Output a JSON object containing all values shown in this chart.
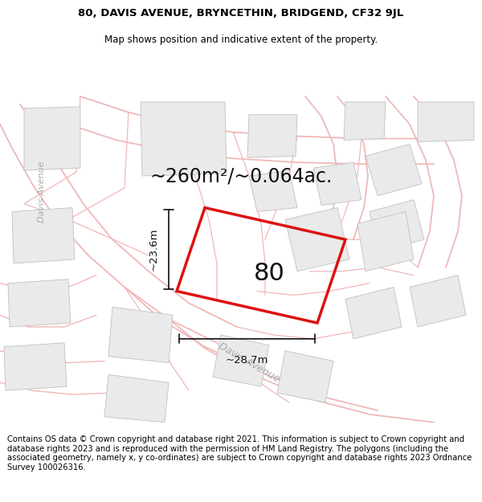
{
  "title_line1": "80, DAVIS AVENUE, BRYNCETHIN, BRIDGEND, CF32 9JL",
  "title_line2": "Map shows position and indicative extent of the property.",
  "area_label": "~260m²/~0.064ac.",
  "property_number": "80",
  "dim_vertical": "~23.6m",
  "dim_horizontal": "~28.7m",
  "street_label_diagonal": "Davis Avenue",
  "street_label_left": "Davis Avenue",
  "footer_text": "Contains OS data © Crown copyright and database right 2021. This information is subject to Crown copyright and database rights 2023 and is reproduced with the permission of HM Land Registry. The polygons (including the associated geometry, namely x, y co-ordinates) are subject to Crown copyright and database rights 2023 Ordnance Survey 100026316.",
  "map_bg": "#ffffff",
  "plot_color_red": "#dd1111",
  "road_color": "#f0b8b8",
  "parcel_color": "#f0b8b8",
  "building_fill": "#e8e8e8",
  "building_outline": "#bbbbbb",
  "dim_line_color": "#111111",
  "title_fontsize": 9.5,
  "subtitle_fontsize": 8.5,
  "area_fontsize": 17,
  "number_fontsize": 22,
  "dim_fontsize": 9.5,
  "street_fontsize": 9,
  "footer_fontsize": 7.2
}
